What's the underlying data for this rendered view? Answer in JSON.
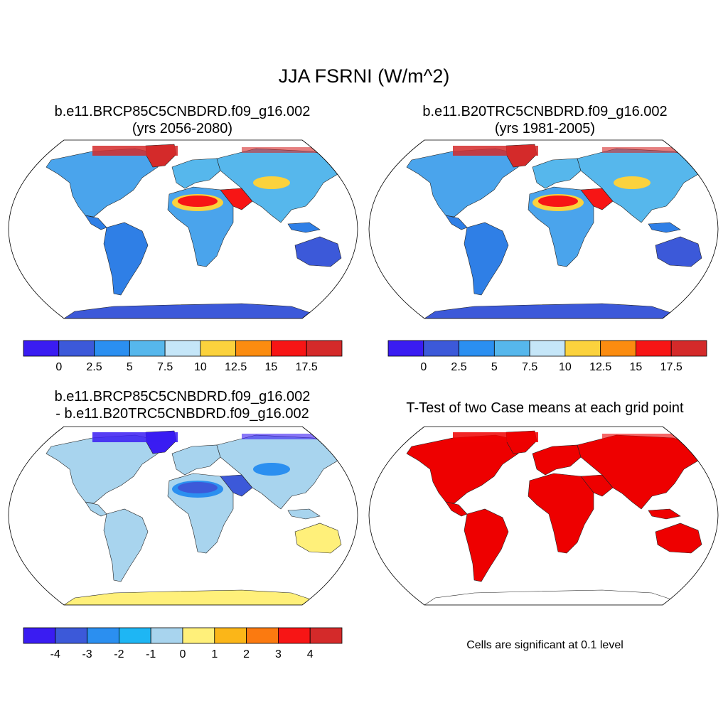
{
  "figure": {
    "title": "JJA FSRNI (W/m^2)"
  },
  "panels": [
    {
      "id": "case1",
      "title_line1": "b.e11.BRCP85C5CNBDRD.f09_g16.002",
      "title_line2": "(yrs 2056-2080)",
      "palette": [
        "#3a1cf2",
        "#3c59d9",
        "#2b8ff0",
        "#56b7ec",
        "#c5e6f8",
        "#fbd23d",
        "#fb8c10",
        "#f71515",
        "#d42a2a"
      ],
      "colorbar_labels": [
        "0",
        "2.5",
        "5",
        "7.5",
        "10",
        "12.5",
        "15",
        "17.5"
      ],
      "map_colors": {
        "ocean": "#ffffff",
        "land": "#4aa4ec",
        "tropics": "#2f7fe6",
        "southern": "#3c59d9",
        "desert": "#f71515",
        "desert_edge": "#fbd23d",
        "arctic": "#d42a2a",
        "antarctica": "#3c59d9",
        "boreal": "#56b7ec"
      }
    },
    {
      "id": "case2",
      "title_line1": "b.e11.B20TRC5CNBDRD.f09_g16.002",
      "title_line2": "(yrs 1981-2005)",
      "palette": [
        "#3a1cf2",
        "#3c59d9",
        "#2b8ff0",
        "#56b7ec",
        "#c5e6f8",
        "#fbd23d",
        "#fb8c10",
        "#f71515",
        "#d42a2a"
      ],
      "colorbar_labels": [
        "0",
        "2.5",
        "5",
        "7.5",
        "10",
        "12.5",
        "15",
        "17.5"
      ],
      "map_colors": {
        "ocean": "#ffffff",
        "land": "#4aa4ec",
        "tropics": "#2f7fe6",
        "southern": "#3c59d9",
        "desert": "#f71515",
        "desert_edge": "#fbd23d",
        "arctic": "#d42a2a",
        "antarctica": "#3c59d9",
        "boreal": "#56b7ec"
      }
    },
    {
      "id": "difference",
      "title_line1": "b.e11.BRCP85C5CNBDRD.f09_g16.002",
      "title_line2": "- b.e11.B20TRC5CNBDRD.f09_g16.002",
      "palette": [
        "#3a1cf2",
        "#3c59d9",
        "#2b8ff0",
        "#1eb6f4",
        "#a8d4ee",
        "#fff07a",
        "#fbb618",
        "#fb7a10",
        "#f71515",
        "#d42a2a"
      ],
      "colorbar_labels": [
        "-4",
        "-3",
        "-2",
        "-1",
        "0",
        "1",
        "2",
        "3",
        "4"
      ],
      "map_colors": {
        "ocean": "#ffffff",
        "land": "#a8d4ee",
        "tropics": "#a8d4ee",
        "southern": "#fff07a",
        "desert": "#3c59d9",
        "desert_edge": "#2b8ff0",
        "arctic": "#3a1cf2",
        "antarctica": "#fff07a",
        "boreal": "#a8d4ee"
      }
    },
    {
      "id": "ttest",
      "title_line1": "T-Test of two Case means at each grid point",
      "note": "Cells are significant at 0.1 level",
      "map_colors": {
        "ocean": "#ffffff",
        "land": "#ee0000",
        "tropics": "#ee0000",
        "southern": "#ee0000",
        "desert": "#ee0000",
        "desert_edge": "#ee0000",
        "arctic": "#ee0000",
        "antarctica": "#ffffff",
        "boreal": "#ee0000"
      }
    }
  ]
}
